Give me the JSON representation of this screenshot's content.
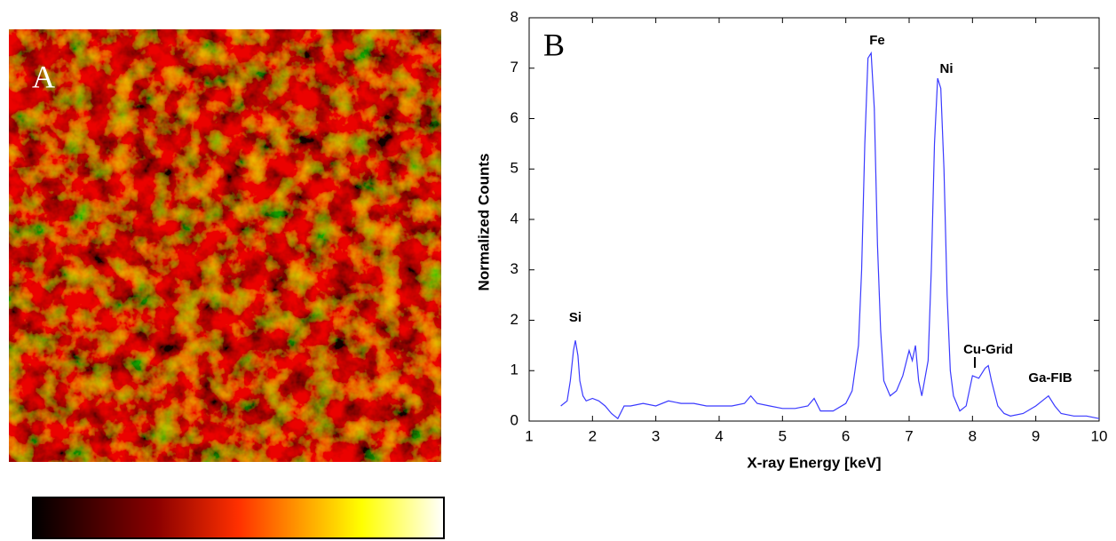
{
  "panel_a": {
    "label": "A"
  },
  "chart_data": {
    "type": "line",
    "panel_label": "B",
    "x_label": "X-ray Energy [keV]",
    "y_label": "Normalized Counts",
    "xlim": [
      1,
      10
    ],
    "ylim": [
      0,
      8
    ],
    "xticks": [
      1,
      2,
      3,
      4,
      5,
      6,
      7,
      8,
      9,
      10
    ],
    "yticks": [
      0,
      1,
      2,
      3,
      4,
      5,
      6,
      7,
      8
    ],
    "grid": false,
    "annotations": [
      "Si",
      "Fe",
      "Ni",
      "Cu-Grid",
      "Ga-FIB"
    ],
    "x": [
      1.5,
      1.6,
      1.65,
      1.7,
      1.73,
      1.77,
      1.8,
      1.85,
      1.9,
      2.0,
      2.1,
      2.2,
      2.3,
      2.4,
      2.5,
      2.6,
      2.8,
      3.0,
      3.2,
      3.4,
      3.6,
      3.8,
      4.0,
      4.2,
      4.4,
      4.5,
      4.6,
      4.8,
      5.0,
      5.2,
      5.4,
      5.5,
      5.6,
      5.8,
      6.0,
      6.1,
      6.2,
      6.25,
      6.3,
      6.35,
      6.4,
      6.45,
      6.5,
      6.55,
      6.6,
      6.7,
      6.8,
      6.9,
      7.0,
      7.05,
      7.1,
      7.15,
      7.2,
      7.3,
      7.35,
      7.4,
      7.45,
      7.5,
      7.55,
      7.6,
      7.65,
      7.7,
      7.8,
      7.9,
      8.0,
      8.1,
      8.2,
      8.25,
      8.3,
      8.4,
      8.5,
      8.6,
      8.8,
      9.0,
      9.1,
      9.2,
      9.3,
      9.4,
      9.6,
      9.8,
      10.0
    ],
    "series": [
      {
        "color": "#3a3aff",
        "values": [
          0.3,
          0.4,
          0.8,
          1.4,
          1.6,
          1.3,
          0.8,
          0.5,
          0.4,
          0.45,
          0.4,
          0.3,
          0.15,
          0.05,
          0.3,
          0.3,
          0.35,
          0.3,
          0.4,
          0.35,
          0.35,
          0.3,
          0.3,
          0.3,
          0.35,
          0.5,
          0.35,
          0.3,
          0.25,
          0.25,
          0.3,
          0.45,
          0.2,
          0.2,
          0.35,
          0.6,
          1.5,
          3.0,
          5.5,
          7.2,
          7.3,
          6.2,
          3.5,
          1.8,
          0.8,
          0.5,
          0.6,
          0.9,
          1.4,
          1.2,
          1.5,
          0.8,
          0.5,
          1.2,
          3.0,
          5.5,
          6.8,
          6.6,
          5.0,
          2.5,
          1.0,
          0.5,
          0.2,
          0.3,
          0.9,
          0.85,
          1.05,
          1.1,
          0.8,
          0.3,
          0.15,
          0.1,
          0.15,
          0.3,
          0.4,
          0.5,
          0.3,
          0.15,
          0.1,
          0.1,
          0.05
        ]
      }
    ]
  }
}
